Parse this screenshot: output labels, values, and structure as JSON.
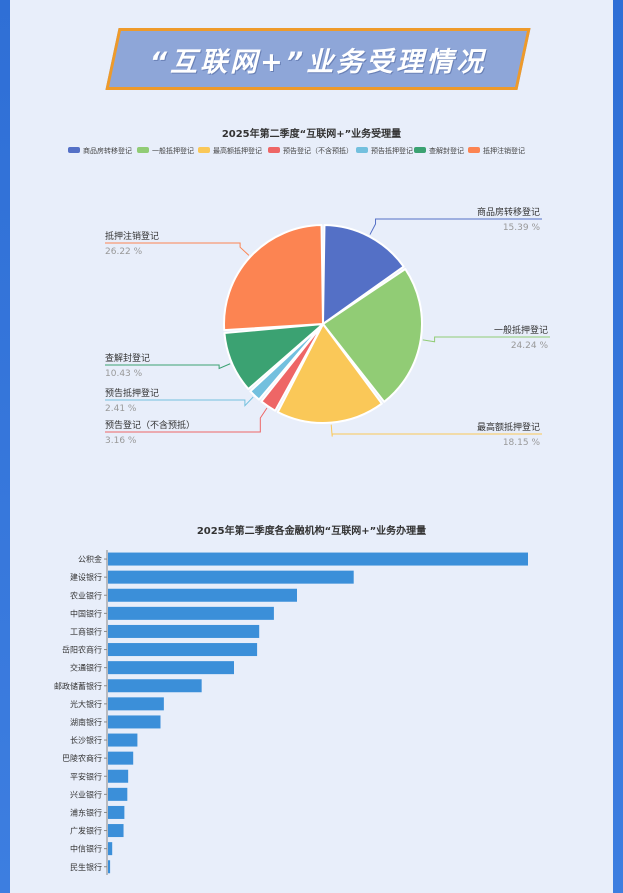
{
  "page": {
    "title": "“互联网+”业务受理情况"
  },
  "chart_data": [
    {
      "type": "pie",
      "title": "2025年第二季度“互联网+”业务受理量",
      "legend_position": "top",
      "slices": [
        {
          "label": "商品房转移登记",
          "value": 15.39,
          "percent_text": "15.39 %",
          "color": "#5470c6"
        },
        {
          "label": "一般抵押登记",
          "value": 24.24,
          "percent_text": "24.24 %",
          "color": "#91cc75"
        },
        {
          "label": "最高额抵押登记",
          "value": 18.15,
          "percent_text": "18.15 %",
          "color": "#fac858"
        },
        {
          "label": "预告登记（不含预抵）",
          "value": 3.16,
          "percent_text": "3.16 %",
          "color": "#ee6666"
        },
        {
          "label": "预告抵押登记",
          "value": 2.41,
          "percent_text": "2.41 %",
          "color": "#73c0de"
        },
        {
          "label": "查解封登记",
          "value": 10.43,
          "percent_text": "10.43 %",
          "color": "#3ba272"
        },
        {
          "label": "抵押注销登记",
          "value": 26.22,
          "percent_text": "26.22 %",
          "color": "#fc8452"
        }
      ]
    },
    {
      "type": "bar",
      "orientation": "horizontal",
      "title": "2025年第二季度各金融机构“互联网+”业务办理量",
      "bar_color": "#3b8fd9",
      "grid": false,
      "categories": [
        "公积金",
        "建设银行",
        "农业银行",
        "中国银行",
        "工商银行",
        "岳阳农商行",
        "交通银行",
        "邮政储蓄银行",
        "光大银行",
        "湖南银行",
        "长沙银行",
        "巴陵农商行",
        "平安银行",
        "兴业银行",
        "浦东银行",
        "广发银行",
        "中信银行",
        "民生银行"
      ],
      "values": [
        100,
        58.5,
        45,
        39.5,
        36,
        35.5,
        30,
        22.3,
        13.3,
        12.5,
        7,
        6,
        4.8,
        4.6,
        3.9,
        3.7,
        1,
        0.5
      ]
    }
  ]
}
